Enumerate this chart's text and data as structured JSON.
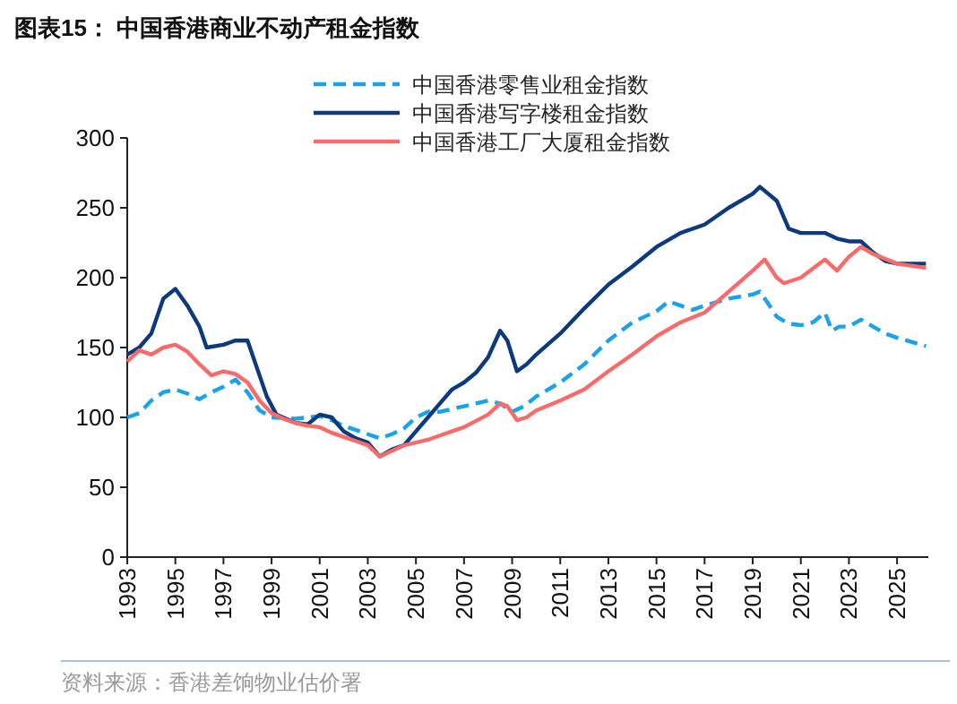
{
  "chart_data": {
    "type": "line",
    "title": "图表15：  中国香港商业不动产租金指数",
    "annotations": [
      "资料来源：香港差饷物业估价署"
    ],
    "xlim": [
      1993,
      2026.3
    ],
    "xticks": [
      1993,
      1995,
      1997,
      1999,
      2001,
      2003,
      2005,
      2007,
      2009,
      2011,
      2013,
      2015,
      2017,
      2019,
      2021,
      2023,
      2025
    ],
    "ylim": [
      0,
      300
    ],
    "yticks": [
      0,
      50,
      100,
      150,
      200,
      250,
      300
    ],
    "grid": false,
    "legend": "top",
    "marker": "none",
    "series": [
      {
        "name": "中国香港零售业租金指数",
        "color": "#1aa3e8",
        "line_style": "dashed",
        "x": [
          1993,
          1993.5,
          1994,
          1994.5,
          1995,
          1995.5,
          1996,
          1996.5,
          1997,
          1997.5,
          1998,
          1998.5,
          1999,
          2000,
          2000.5,
          2001,
          2001.5,
          2002,
          2003,
          2003.5,
          2004,
          2004.5,
          2005,
          2005.5,
          2006,
          2007,
          2008,
          2008.5,
          2009,
          2009.5,
          2010,
          2011,
          2012,
          2013,
          2014,
          2015,
          2015.5,
          2016,
          2016.5,
          2017,
          2018,
          2019,
          2019.3,
          2019.7,
          2020,
          2020.5,
          2021,
          2021.5,
          2022,
          2022.3,
          2022.6,
          2023,
          2023.5,
          2024,
          2024.5,
          2025,
          2026.2
        ],
        "values": [
          100,
          103,
          112,
          118,
          120,
          117,
          113,
          118,
          122,
          127,
          118,
          105,
          100,
          99,
          100,
          101,
          98,
          94,
          88,
          85,
          88,
          92,
          100,
          104,
          104,
          108,
          112,
          110,
          104,
          108,
          115,
          125,
          138,
          155,
          168,
          176,
          183,
          180,
          177,
          180,
          185,
          188,
          190,
          180,
          172,
          167,
          166,
          168,
          175,
          162,
          165,
          165,
          170,
          165,
          160,
          157,
          151
        ]
      },
      {
        "name": "中国香港写字楼租金指数",
        "color": "#0d3a7d",
        "line_style": "solid",
        "x": [
          1993,
          1993.5,
          1994,
          1994.5,
          1995,
          1995.5,
          1996,
          1996.3,
          1997,
          1997.5,
          1998,
          1998.3,
          1998.8,
          1999.2,
          2000,
          2000.5,
          2001,
          2001.5,
          2002,
          2002.5,
          2003,
          2003.5,
          2004,
          2004.5,
          2005,
          2005.5,
          2006,
          2006.5,
          2007,
          2007.5,
          2008,
          2008.5,
          2008.8,
          2009.2,
          2009.6,
          2010,
          2011,
          2012,
          2013,
          2014,
          2015,
          2016,
          2017,
          2018,
          2019,
          2019.3,
          2020,
          2020.5,
          2021,
          2022,
          2022.5,
          2023,
          2023.5,
          2024,
          2024.5,
          2025,
          2026.2
        ],
        "values": [
          145,
          150,
          160,
          185,
          192,
          180,
          165,
          150,
          152,
          155,
          155,
          140,
          115,
          102,
          96,
          95,
          102,
          100,
          90,
          85,
          82,
          72,
          77,
          80,
          90,
          100,
          110,
          120,
          125,
          132,
          143,
          162,
          155,
          133,
          138,
          145,
          160,
          178,
          195,
          208,
          222,
          232,
          238,
          250,
          260,
          265,
          255,
          235,
          232,
          232,
          228,
          226,
          226,
          218,
          212,
          210,
          210
        ]
      },
      {
        "name": "中国香港工厂大厦租金指数",
        "color": "#f76b6b",
        "line_style": "solid",
        "x": [
          1993,
          1993.5,
          1994,
          1994.5,
          1995,
          1995.5,
          1996,
          1996.5,
          1997,
          1997.5,
          1998,
          1998.5,
          1999,
          1999.5,
          2000,
          2000.5,
          2001,
          2001.5,
          2002,
          2002.5,
          2003,
          2003.5,
          2004,
          2004.5,
          2005,
          2005.5,
          2006,
          2007,
          2008,
          2008.5,
          2008.8,
          2009.2,
          2009.6,
          2010,
          2011,
          2012,
          2013,
          2014,
          2015,
          2016,
          2017,
          2018,
          2019,
          2019.5,
          2020,
          2020.3,
          2021,
          2022,
          2022.5,
          2023,
          2023.5,
          2024,
          2025,
          2026.2
        ],
        "values": [
          140,
          148,
          145,
          150,
          152,
          147,
          138,
          130,
          133,
          131,
          125,
          112,
          103,
          99,
          96,
          94,
          93,
          89,
          86,
          83,
          80,
          72,
          76,
          80,
          82,
          84,
          87,
          93,
          102,
          110,
          108,
          98,
          100,
          105,
          112,
          120,
          133,
          145,
          158,
          168,
          175,
          190,
          205,
          213,
          200,
          196,
          200,
          213,
          205,
          215,
          222,
          217,
          210,
          207
        ]
      }
    ]
  }
}
